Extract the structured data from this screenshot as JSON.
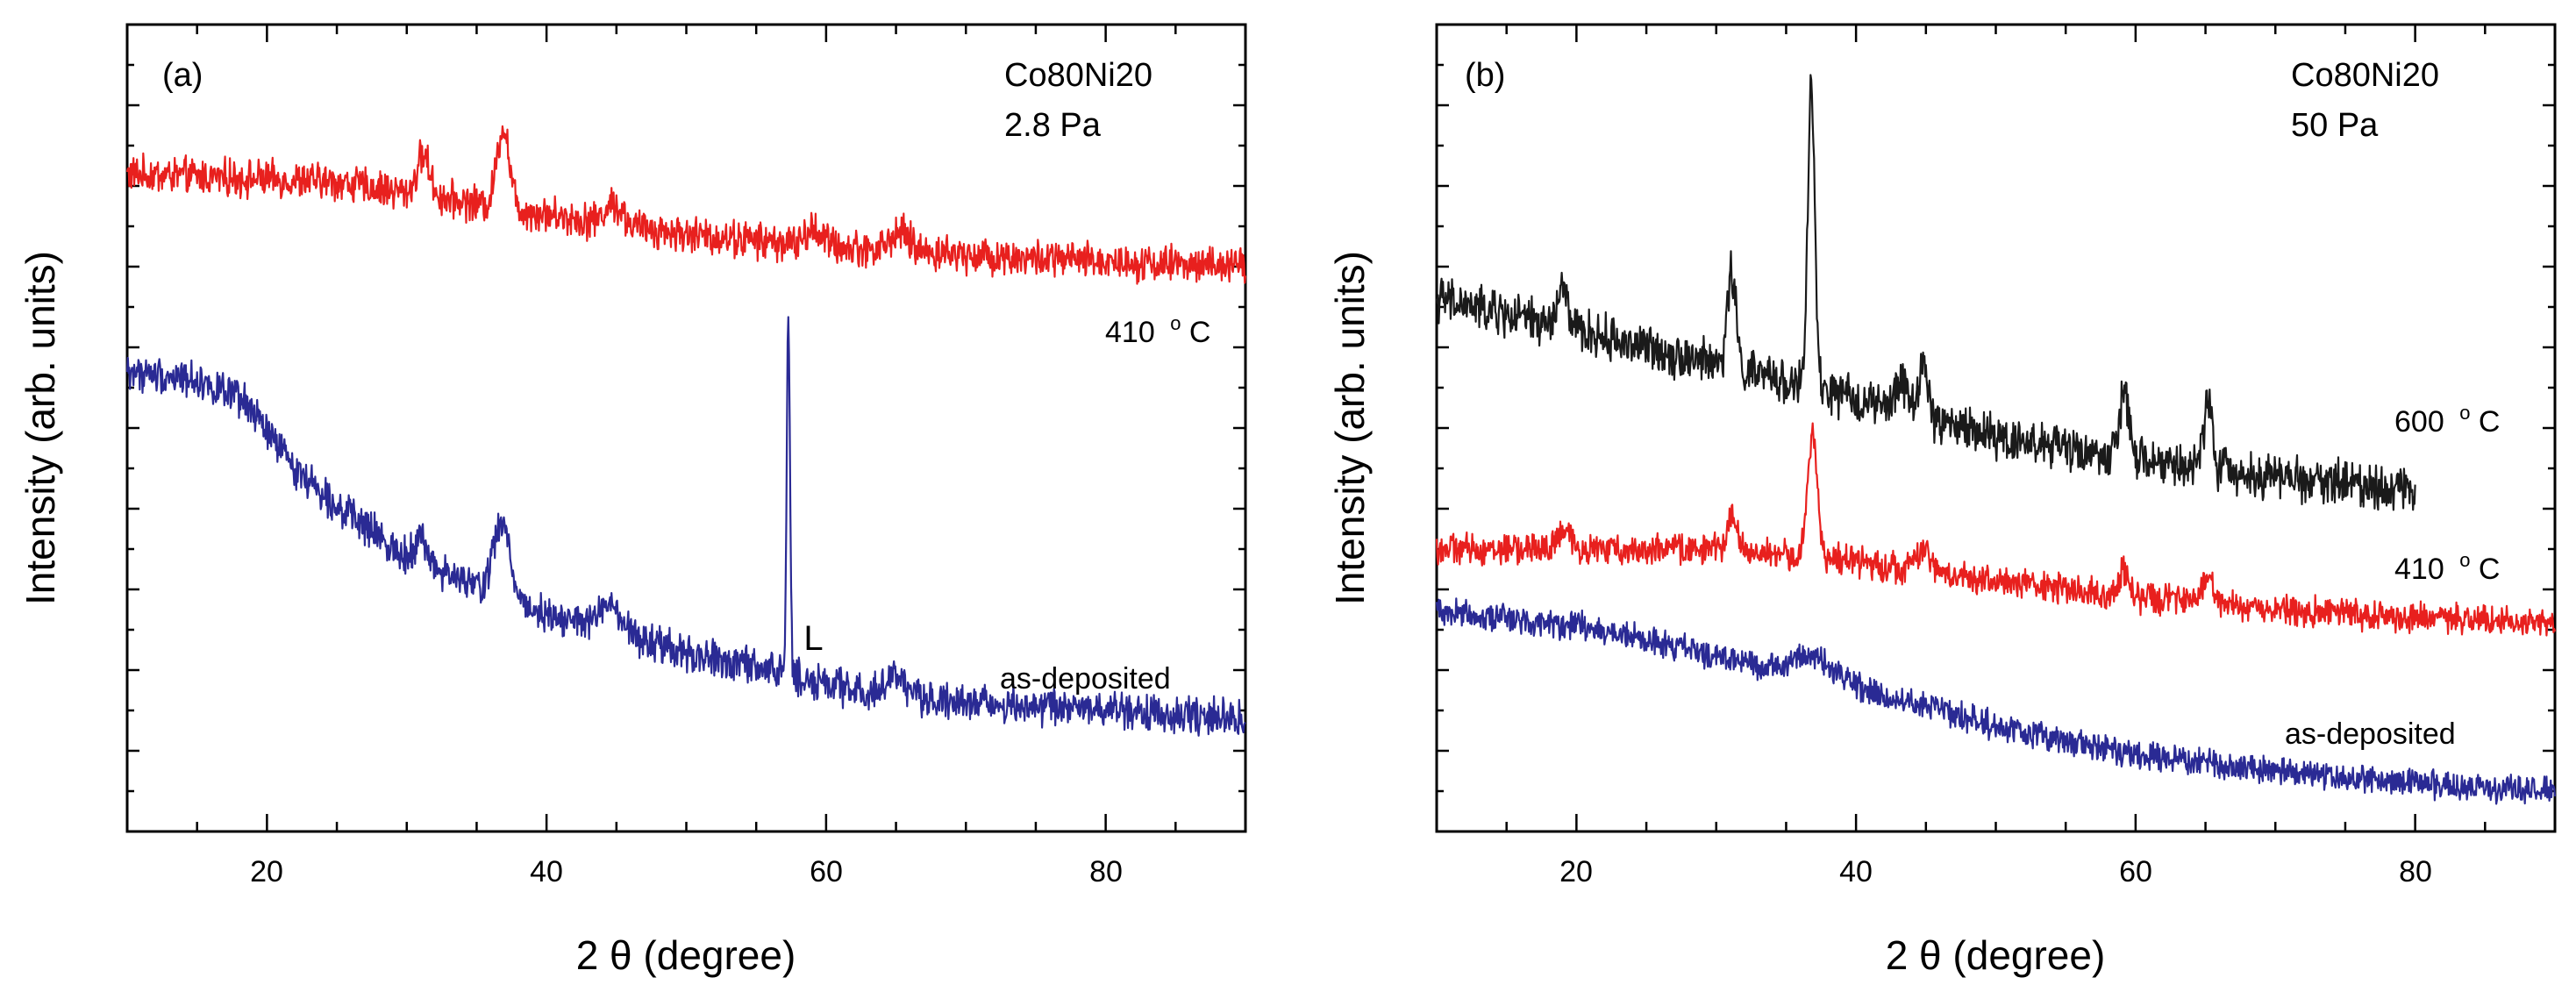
{
  "colors": {
    "black": "#1a1a1a",
    "red": "#e8201e",
    "blue": "#2a2a94",
    "label_blue": "#3a3ab0"
  },
  "chart_data": [
    {
      "id": "a",
      "type": "line",
      "panel_label": "(a)",
      "xlabel": "2 θ (degree)",
      "ylabel": "Intensity (arb. units)",
      "xlim": [
        10,
        90
      ],
      "ylim": [
        0,
        100
      ],
      "xticks": [
        20,
        40,
        60,
        80
      ],
      "annotation": {
        "lines": [
          "Co80Ni20",
          "2.8 Pa"
        ]
      },
      "series": [
        {
          "name": "410 °C",
          "label_main": "410",
          "label_sup": "o",
          "label_suffix": "C",
          "color_key": "red",
          "x_end": 90,
          "baseline": [
            [
              10,
              81.5
            ],
            [
              25,
              80.5
            ],
            [
              40,
              76.5
            ],
            [
              50,
              74
            ],
            [
              60,
              72.5
            ],
            [
              75,
              71
            ],
            [
              90,
              70
            ]
          ],
          "noise": 1.8,
          "peaks": [
            [
              31.2,
              5,
              0.45
            ],
            [
              36.9,
              10,
              0.45
            ],
            [
              44.8,
              2.5,
              0.6
            ],
            [
              59.2,
              2,
              0.6
            ],
            [
              65.3,
              2.2,
              0.7
            ]
          ]
        },
        {
          "name": "as-deposited",
          "label_main": "as-deposited",
          "color_key": "blue",
          "x_end": 90,
          "baseline": [
            [
              10,
              57
            ],
            [
              15,
              56
            ],
            [
              18.5,
              53
            ],
            [
              22,
              45
            ],
            [
              26,
              39
            ],
            [
              30,
              34
            ],
            [
              34,
              31
            ],
            [
              40,
              27
            ],
            [
              45,
              24.5
            ],
            [
              50,
              22
            ],
            [
              56,
              20
            ],
            [
              62,
              17.5
            ],
            [
              70,
              16
            ],
            [
              80,
              15
            ],
            [
              90,
              14
            ]
          ],
          "noise": 1.8,
          "peaks": [
            [
              31,
              3,
              0.5
            ],
            [
              36.8,
              9,
              0.6
            ],
            [
              44.5,
              3,
              0.8
            ],
            [
              57.3,
              44,
              0.12
            ],
            [
              65,
              2,
              0.8
            ]
          ]
        }
      ],
      "peak_label": {
        "text": "L",
        "x": 58.4,
        "y": 22.5
      }
    },
    {
      "id": "b",
      "type": "line",
      "panel_label": "(b)",
      "xlabel": "2 θ (degree)",
      "ylabel": "Intensity (arb. units)",
      "xlim": [
        10,
        90
      ],
      "ylim": [
        0,
        100
      ],
      "xticks": [
        20,
        40,
        60,
        80
      ],
      "annotation": {
        "lines": [
          "Co80Ni20",
          "50 Pa"
        ]
      },
      "series": [
        {
          "name": "600 °C",
          "label_main": "600",
          "label_sup": "o",
          "label_suffix": "C",
          "color_key": "black",
          "x_end": 80,
          "baseline": [
            [
              10,
              66
            ],
            [
              20,
              62
            ],
            [
              30,
              58
            ],
            [
              40,
              53.5
            ],
            [
              50,
              49
            ],
            [
              60,
              46
            ],
            [
              70,
              44
            ],
            [
              80,
              42.5
            ]
          ],
          "noise": 2.2,
          "peaks": [
            [
              19,
              5,
              0.35
            ],
            [
              31.1,
              12,
              0.3
            ],
            [
              36.8,
              37,
              0.25
            ],
            [
              43.3,
              4,
              0.4
            ],
            [
              44.8,
              7,
              0.3
            ],
            [
              59.2,
              9,
              0.3
            ],
            [
              65.2,
              9,
              0.3
            ]
          ]
        },
        {
          "name": "410 °C",
          "label_main": "410",
          "label_sup": "o",
          "label_suffix": "C",
          "color_key": "red",
          "x_end": 90,
          "baseline": [
            [
              10,
              35
            ],
            [
              30,
              35
            ],
            [
              40,
              33.5
            ],
            [
              50,
              31
            ],
            [
              60,
              29
            ],
            [
              70,
              27.5
            ],
            [
              80,
              26.5
            ],
            [
              90,
              26
            ]
          ],
          "noise": 1.5,
          "peaks": [
            [
              19.1,
              2,
              0.5
            ],
            [
              31.1,
              4.5,
              0.35
            ],
            [
              36.9,
              15,
              0.35
            ],
            [
              44.8,
              2.5,
              0.5
            ],
            [
              59.2,
              3,
              0.4
            ],
            [
              65.2,
              3,
              0.4
            ]
          ]
        },
        {
          "name": "as-deposited",
          "label_main": "as-deposited",
          "color_key": "blue",
          "x_end": 90,
          "baseline": [
            [
              10,
              27.5
            ],
            [
              20,
              25.5
            ],
            [
              28,
              22.5
            ],
            [
              33,
              20.5
            ],
            [
              36.5,
              20.5
            ],
            [
              40,
              18
            ],
            [
              50,
              13
            ],
            [
              60,
              9.5
            ],
            [
              70,
              7.5
            ],
            [
              80,
              6
            ],
            [
              90,
              5
            ]
          ],
          "noise": 1.4,
          "peaks": [
            [
              36.8,
              1.5,
              1.2
            ]
          ]
        }
      ]
    }
  ]
}
